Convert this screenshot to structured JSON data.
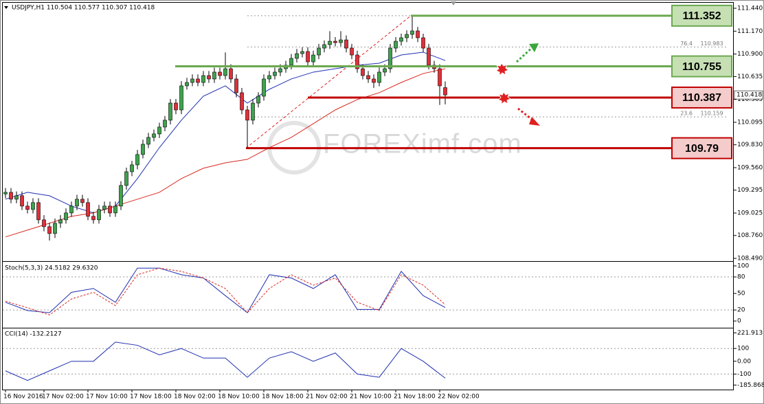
{
  "chart_data": [
    {
      "type": "candlestick",
      "title": "USDJPY,H1  110.504 110.577 110.307 110.418",
      "up_color": "#3fa34d",
      "down_color": "#e0303a",
      "categories": [
        "16 Nov 2016",
        null,
        null,
        null,
        null,
        null,
        null,
        "17 Nov 02:00",
        null,
        null,
        null,
        null,
        null,
        null,
        null,
        "17 Nov 10:00",
        null,
        null,
        null,
        null,
        null,
        null,
        null,
        "17 Nov 18:00",
        null,
        null,
        null,
        null,
        null,
        null,
        null,
        "18 Nov 02:00",
        null,
        null,
        null,
        null,
        null,
        null,
        null,
        "18 Nov 10:00",
        null,
        null,
        null,
        null,
        null,
        null,
        null,
        "18 Nov 18:00",
        null,
        null,
        null,
        null,
        null,
        null,
        null,
        "21 Nov 02:00",
        null,
        null,
        null,
        null,
        null,
        null,
        null,
        "21 Nov 10:00",
        null,
        null,
        null,
        null,
        null,
        null,
        null,
        "21 Nov 18:00",
        null,
        null,
        null,
        null,
        null,
        null,
        null,
        "22 Nov 02:00",
        null
      ],
      "open": [
        109.25,
        109.269,
        109.188,
        109.229,
        109.107,
        109.067,
        109.148,
        108.945,
        108.864,
        108.783,
        108.905,
        108.945,
        109.026,
        109.107,
        109.188,
        109.148,
        108.986,
        108.945,
        109.067,
        109.107,
        109.026,
        109.107,
        109.35,
        109.512,
        109.593,
        109.715,
        109.836,
        109.917,
        109.958,
        110.039,
        110.12,
        110.322,
        110.241,
        110.525,
        110.565,
        110.606,
        110.565,
        110.646,
        110.606,
        110.687,
        110.646,
        110.727,
        110.606,
        110.444,
        110.241,
        110.12,
        110.322,
        110.403,
        110.606,
        110.646,
        110.687,
        110.727,
        110.768,
        110.849,
        110.905,
        110.93,
        110.808,
        110.889,
        110.97,
        111.011,
        111.051,
        111.035,
        111.067,
        110.97,
        110.889,
        110.727,
        110.646,
        110.606,
        110.565,
        110.687,
        110.727,
        110.97,
        111.051,
        111.092,
        111.132,
        111.173,
        111.092,
        110.97,
        110.768,
        110.727,
        110.504
      ],
      "high": [
        109.32,
        109.32,
        109.28,
        109.28,
        109.16,
        109.2,
        109.2,
        109.0,
        108.91,
        108.96,
        109.0,
        109.08,
        109.16,
        109.24,
        109.24,
        109.2,
        109.04,
        109.12,
        109.16,
        109.16,
        109.16,
        109.4,
        109.56,
        109.64,
        109.77,
        109.89,
        109.97,
        110.01,
        110.09,
        110.17,
        110.37,
        110.37,
        110.58,
        110.62,
        110.66,
        110.66,
        110.7,
        110.7,
        110.74,
        110.74,
        110.92,
        110.78,
        110.66,
        110.5,
        110.29,
        110.37,
        110.45,
        110.66,
        110.7,
        110.74,
        110.78,
        110.82,
        110.9,
        110.96,
        110.98,
        110.98,
        110.94,
        111.02,
        111.06,
        111.17,
        111.1,
        111.17,
        111.12,
        111.02,
        110.94,
        110.78,
        110.7,
        110.66,
        110.74,
        110.78,
        111.02,
        111.1,
        111.14,
        111.18,
        111.352,
        111.22,
        111.14,
        111.02,
        110.82,
        110.78,
        110.577
      ],
      "low": [
        109.2,
        109.14,
        109.14,
        109.06,
        109.02,
        109.02,
        108.9,
        108.81,
        108.7,
        108.73,
        108.85,
        108.9,
        108.98,
        109.06,
        109.1,
        108.94,
        108.9,
        108.9,
        109.02,
        108.98,
        108.98,
        109.06,
        109.3,
        109.46,
        109.54,
        109.67,
        109.79,
        109.87,
        109.91,
        109.99,
        110.07,
        110.19,
        110.19,
        110.48,
        110.52,
        110.52,
        110.52,
        110.56,
        110.56,
        110.6,
        110.6,
        110.56,
        110.39,
        110.19,
        109.79,
        110.07,
        110.27,
        110.35,
        110.56,
        110.6,
        110.64,
        110.68,
        110.72,
        110.8,
        110.86,
        110.76,
        110.76,
        110.84,
        110.92,
        110.96,
        110.99,
        110.99,
        110.92,
        110.84,
        110.68,
        110.6,
        110.56,
        110.5,
        110.52,
        110.64,
        110.68,
        110.92,
        111.0,
        111.04,
        111.08,
        111.04,
        110.92,
        110.72,
        110.68,
        110.3,
        110.307
      ],
      "close": [
        109.269,
        109.188,
        109.229,
        109.107,
        109.067,
        109.148,
        108.945,
        108.864,
        108.783,
        108.905,
        108.945,
        109.026,
        109.107,
        109.188,
        109.148,
        108.986,
        108.945,
        109.067,
        109.107,
        109.026,
        109.107,
        109.35,
        109.512,
        109.593,
        109.715,
        109.836,
        109.917,
        109.958,
        110.039,
        110.12,
        110.322,
        110.241,
        110.525,
        110.565,
        110.606,
        110.565,
        110.646,
        110.606,
        110.687,
        110.646,
        110.727,
        110.606,
        110.444,
        110.241,
        110.12,
        110.322,
        110.403,
        110.606,
        110.646,
        110.687,
        110.727,
        110.768,
        110.849,
        110.905,
        110.93,
        110.808,
        110.889,
        110.97,
        111.011,
        111.051,
        111.035,
        111.067,
        110.97,
        110.889,
        110.727,
        110.646,
        110.606,
        110.565,
        110.687,
        110.727,
        110.97,
        111.051,
        111.092,
        111.132,
        111.173,
        111.092,
        110.97,
        110.768,
        110.727,
        110.525,
        110.418
      ],
      "overlays": [
        {
          "color": "#1f2fb0",
          "x": [
            0,
            4,
            8,
            12,
            16,
            20,
            24,
            28,
            32,
            36,
            40,
            44,
            48,
            52,
            56,
            60,
            64,
            68,
            72,
            76,
            80
          ],
          "values": [
            109.188,
            109.269,
            109.229,
            109.107,
            109.026,
            109.107,
            109.431,
            109.796,
            110.12,
            110.403,
            110.525,
            110.322,
            110.484,
            110.606,
            110.687,
            110.727,
            110.768,
            110.792,
            110.889,
            110.922,
            110.824
          ]
        },
        {
          "color": "#d8281f",
          "x": [
            0,
            4,
            8,
            12,
            16,
            20,
            24,
            28,
            32,
            36,
            40,
            44,
            48,
            52,
            56,
            60,
            64,
            68,
            72,
            76,
            80
          ],
          "values": [
            108.743,
            108.824,
            108.905,
            108.986,
            109.026,
            109.107,
            109.188,
            109.269,
            109.431,
            109.553,
            109.617,
            109.658,
            109.796,
            109.917,
            110.079,
            110.241,
            110.363,
            110.444,
            110.565,
            110.67,
            110.727
          ]
        }
      ],
      "levels": [
        {
          "value": 111.352,
          "color": "#6aa84f",
          "fill": "#c6e0b4"
        },
        {
          "value": 110.755,
          "color": "#6aa84f",
          "fill": "#c6e0b4"
        },
        {
          "value": 110.387,
          "color": "#c00000",
          "fill": "#f4cccc"
        },
        {
          "value": 109.79,
          "color": "#c00000",
          "fill": "#f4cccc"
        }
      ],
      "fib_levels": [
        {
          "label": "76.4",
          "value": 110.983
        },
        {
          "label": "23.6",
          "value": 110.159
        }
      ],
      "watermark": "FOREXimf.com",
      "ylim": [
        108.458,
        111.497
      ],
      "yticks": [
        {
          "value": 111.44,
          "label": "111.440"
        },
        {
          "value": 111.17,
          "label": "111.170"
        },
        {
          "value": 110.9,
          "label": "110.900"
        },
        110.635,
        110.365,
        110.095,
        {
          "value": 109.83,
          "label": "109.830"
        },
        {
          "value": 109.56,
          "label": "109.560"
        },
        109.295,
        109.025,
        {
          "value": 108.76,
          "label": "108.760"
        },
        {
          "value": 108.49,
          "label": "108.490"
        }
      ]
    },
    {
      "type": "line",
      "title": "Stoch(5,3,3) 24.5182 29.6320",
      "series": [
        {
          "color": "#1f2fb0",
          "x": [
            0,
            4,
            8,
            12,
            16,
            20,
            24,
            28,
            32,
            36,
            40,
            44,
            48,
            52,
            56,
            60,
            64,
            68,
            72,
            76,
            80
          ],
          "values": [
            34,
            19,
            15,
            52,
            59,
            34,
            96,
            96,
            84,
            78,
            46,
            15,
            84,
            78,
            59,
            84,
            21,
            21,
            90,
            46,
            24.5182
          ]
        },
        {
          "color": "#d8281f",
          "dashed": true,
          "x": [
            0,
            4,
            8,
            12,
            16,
            20,
            24,
            28,
            32,
            36,
            40,
            44,
            48,
            52,
            56,
            60,
            64,
            68,
            72,
            76,
            80
          ],
          "values": [
            36,
            24,
            11,
            40,
            52,
            28,
            84,
            96,
            90,
            78,
            59,
            15,
            59,
            84,
            65,
            78,
            34,
            19,
            84,
            65,
            29.632
          ]
        }
      ],
      "reference_lines": [
        80,
        20
      ],
      "ylim": [
        -11,
        107.5
      ],
      "yticks": [
        100,
        80,
        50,
        20,
        0
      ]
    },
    {
      "type": "line",
      "title": "CCI(14) -132.2127",
      "series": [
        {
          "color": "#1f2fb0",
          "x": [
            0,
            4,
            8,
            12,
            16,
            20,
            24,
            28,
            32,
            36,
            40,
            44,
            48,
            52,
            56,
            60,
            64,
            68,
            72,
            76,
            80
          ],
          "values": [
            -75,
            -150,
            -75,
            0,
            0,
            150,
            125,
            50,
            100,
            25,
            25,
            -125,
            25,
            75,
            0,
            65,
            -100,
            -125,
            100,
            0,
            -132.2127
          ]
        }
      ],
      "reference_lines": [
        100,
        -100
      ],
      "ylim": [
        -216,
        257
      ],
      "yticks": [
        221.913,
        100,
        {
          "value": 0,
          "label": "0.00"
        },
        -100,
        -185.8682
      ]
    }
  ]
}
